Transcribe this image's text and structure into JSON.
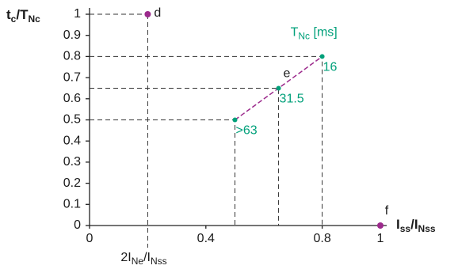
{
  "chart_data": {
    "type": "line",
    "y_label": [
      "t",
      "c",
      "/T",
      "Nc"
    ],
    "x_label": [
      "I",
      "ss",
      "/I",
      "Nss"
    ],
    "xlim": [
      0,
      1
    ],
    "ylim": [
      0,
      1
    ],
    "xticks": [
      0,
      0.4,
      0.8,
      1
    ],
    "yticks": [
      0,
      0.1,
      0.2,
      0.3,
      0.4,
      0.5,
      0.6,
      0.7,
      0.8,
      0.9,
      1
    ],
    "series": [
      {
        "color": "#9c2a8c",
        "marker_color": "#00a07a",
        "x": [
          0.5,
          0.65,
          0.8
        ],
        "values": [
          0.5,
          0.65,
          0.8
        ],
        "point_labels": [
          ">63",
          "31.5",
          "16"
        ],
        "legend_title": [
          "T",
          "Nc",
          " [ms]"
        ]
      }
    ],
    "line_label": "e",
    "points": [
      {
        "label": "d",
        "x": 0.2,
        "y": 1,
        "color": "#9c2a8c",
        "axis_label": [
          "2I",
          "Ne",
          "/I",
          "Nss"
        ]
      },
      {
        "label": "f",
        "x": 1,
        "y": 0,
        "color": "#9c2a8c"
      }
    ]
  }
}
